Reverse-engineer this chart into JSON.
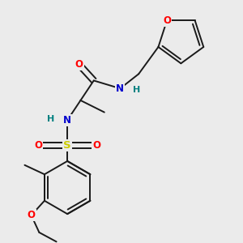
{
  "bg_color": "#ebebeb",
  "atom_colors": {
    "O": "#ff0000",
    "N": "#0000cd",
    "S": "#cccc00",
    "C": "#1a1a1a",
    "H_label": "#008080"
  },
  "bond_color": "#1a1a1a",
  "bond_width": 1.4,
  "title": ""
}
